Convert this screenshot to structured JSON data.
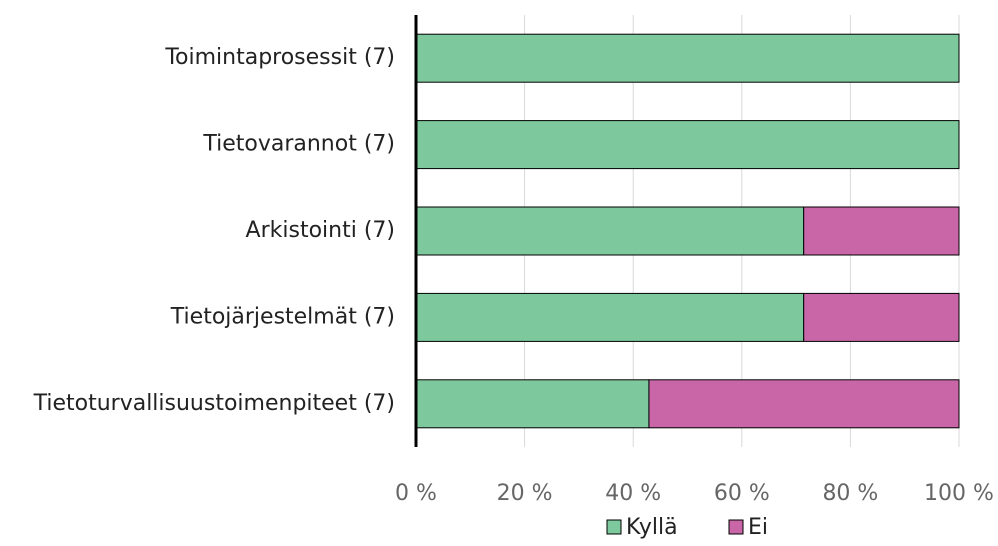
{
  "chart_data": {
    "type": "bar",
    "orientation": "horizontal",
    "stacked": true,
    "categories": [
      "Toimintaprosessit (7)",
      "Tietovarannot (7)",
      "Arkistointi (7)",
      "Tietojärjestelmät (7)",
      "Tietoturvallisuustoimenpiteet (7)"
    ],
    "series": [
      {
        "name": "Kyllä",
        "color": "#7dc89c",
        "values": [
          100,
          100,
          71.4,
          71.4,
          42.9
        ]
      },
      {
        "name": "Ei",
        "color": "#c966a8",
        "values": [
          0,
          0,
          28.6,
          28.6,
          57.1
        ]
      }
    ],
    "xlim": [
      0,
      100
    ],
    "xticks": [
      {
        "value": 0,
        "label": "0 %"
      },
      {
        "value": 20,
        "label": "20 %"
      },
      {
        "value": 40,
        "label": "40 %"
      },
      {
        "value": 60,
        "label": "60 %"
      },
      {
        "value": 80,
        "label": "80 %"
      },
      {
        "value": 100,
        "label": "100 %"
      }
    ],
    "grid": true,
    "legend": "bottom"
  }
}
